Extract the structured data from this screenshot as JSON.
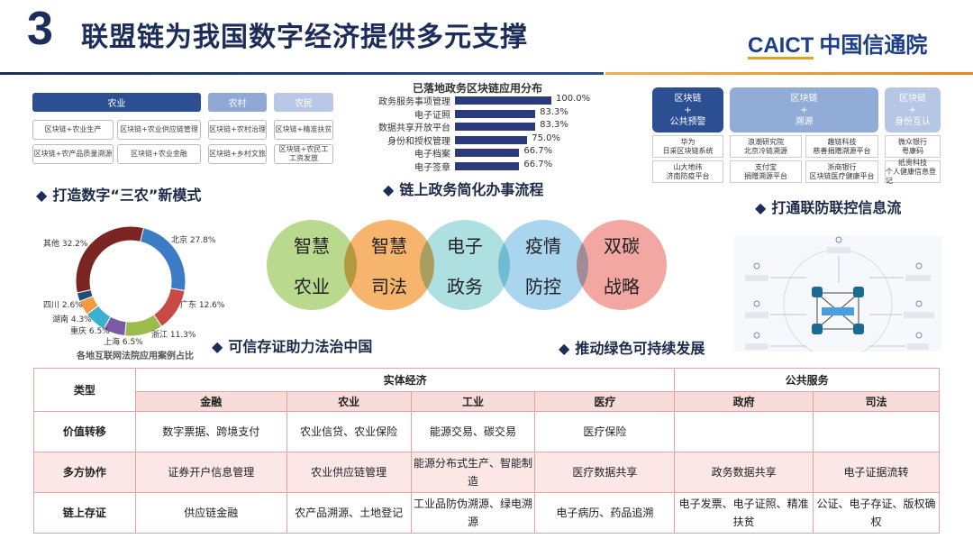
{
  "header": {
    "section_number": "3",
    "title": "联盟链为我国数字经济提供多元支撑",
    "logo_en": "CAICT",
    "logo_cn": "中国信通院"
  },
  "agri": {
    "headers": [
      "农业",
      "农村",
      "农民"
    ],
    "cells": [
      "区块链+农业生产",
      "区块链+农业供应链管理",
      "区块链+农村治理",
      "区块链+精准扶贫",
      "区块链+农产品质量溯源",
      "区块链+农业金融",
      "区块链+乡村文旅",
      "区块链+农民工工资发放"
    ],
    "heading": "打造数字“三农”新模式"
  },
  "gov": {
    "title": "已落地政务区块链应用分布",
    "heading": "链上政务简化办事流程",
    "items": [
      {
        "label": "政务服务事项管理",
        "value": 100.0,
        "text": "100.0%"
      },
      {
        "label": "电子证照",
        "value": 83.3,
        "text": "83.3%"
      },
      {
        "label": "数据共享开放平台",
        "value": 83.3,
        "text": "83.3%"
      },
      {
        "label": "身份和授权管理",
        "value": 75.0,
        "text": "75.0%"
      },
      {
        "label": "电子档案",
        "value": 66.7,
        "text": "66.7%"
      },
      {
        "label": "电子签章",
        "value": 66.7,
        "text": "66.7%"
      }
    ]
  },
  "epidemic": {
    "heading": "打通联防联控信息流",
    "headers": [
      [
        "区块链",
        "+",
        "公共预警"
      ],
      [
        "区块链",
        "+",
        "溯源"
      ],
      [
        "区块链",
        "+",
        "身份互认"
      ]
    ],
    "cells": [
      [
        "华为",
        "日采区块链系统"
      ],
      [
        "浪潮研究院",
        "北京冷链溯源"
      ],
      [
        "趣链科技",
        "慈善捐赠溯源平台"
      ],
      [
        "微众银行",
        "粤康码"
      ],
      [
        "山大地纬",
        "济南防疫平台"
      ],
      [
        "支付宝",
        "捐赠溯源平台"
      ],
      [
        "浙商银行",
        "区块链医疗健康平台"
      ],
      [
        "纸贵科技",
        "个人健康信息登记"
      ]
    ]
  },
  "circles": [
    {
      "l1": "智慧",
      "l2": "农业",
      "color": "#b9d98f"
    },
    {
      "l1": "智慧",
      "l2": "司法",
      "color": "#f6b46c"
    },
    {
      "l1": "电子",
      "l2": "政务",
      "color": "#aee0e2"
    },
    {
      "l1": "疫情",
      "l2": "防控",
      "color": "#a9d5ee"
    },
    {
      "l1": "双碳",
      "l2": "战略",
      "color": "#f2a7a2"
    }
  ],
  "court": {
    "heading": "可信存证助力法治中国",
    "caption": "各地互联网法院应用案例占比",
    "chart_data": {
      "type": "pie",
      "title": "各地互联网法院应用案例占比",
      "slices": [
        {
          "label": "北京",
          "value": 27.8,
          "text": "北京 27.8%",
          "color": "#3b7cc4"
        },
        {
          "label": "广东",
          "value": 12.6,
          "text": "广东 12.6%",
          "color": "#c94a45"
        },
        {
          "label": "浙江",
          "value": 11.3,
          "text": "浙江 11.3%",
          "color": "#9bbb4f"
        },
        {
          "label": "上海",
          "value": 6.5,
          "text": "上海 6.5%",
          "color": "#7d5aa6"
        },
        {
          "label": "重庆",
          "value": 6.5,
          "text": "重庆 6.5%",
          "color": "#3bb0cf"
        },
        {
          "label": "湖南",
          "value": 4.3,
          "text": "湖南 4.3%",
          "color": "#f49a3c"
        },
        {
          "label": "四川",
          "value": 2.6,
          "text": "四川 2.6%",
          "color": "#1f4e79"
        },
        {
          "label": "其他",
          "value": 32.2,
          "text": "其他 32.2%",
          "color": "#7b2523"
        }
      ]
    }
  },
  "green": {
    "heading": "推动绿色可持续发展"
  },
  "table": {
    "type_label": "类型",
    "groups": [
      "实体经济",
      "公共服务"
    ],
    "columns": [
      "金融",
      "农业",
      "工业",
      "医疗",
      "政府",
      "司法"
    ],
    "rows": [
      {
        "label": "价值转移",
        "cells": [
          "数字票据、跨境支付",
          "农业信贷、农业保险",
          "能源交易、碳交易",
          "医疗保险",
          "",
          ""
        ]
      },
      {
        "label": "多方协作",
        "cells": [
          "证券开户信息管理",
          "农业供应链管理",
          "能源分布式生产、智能制造",
          "医疗数据共享",
          "政务数据共享",
          "电子证据流转"
        ]
      },
      {
        "label": "链上存证",
        "cells": [
          "供应链金融",
          "农产品溯源、土地登记",
          "工业品防伪溯源、绿电溯源",
          "电子病历、药品追溯",
          "电子发票、电子证照、精准扶贫",
          "公证、电子存证、版权确权"
        ]
      }
    ]
  }
}
